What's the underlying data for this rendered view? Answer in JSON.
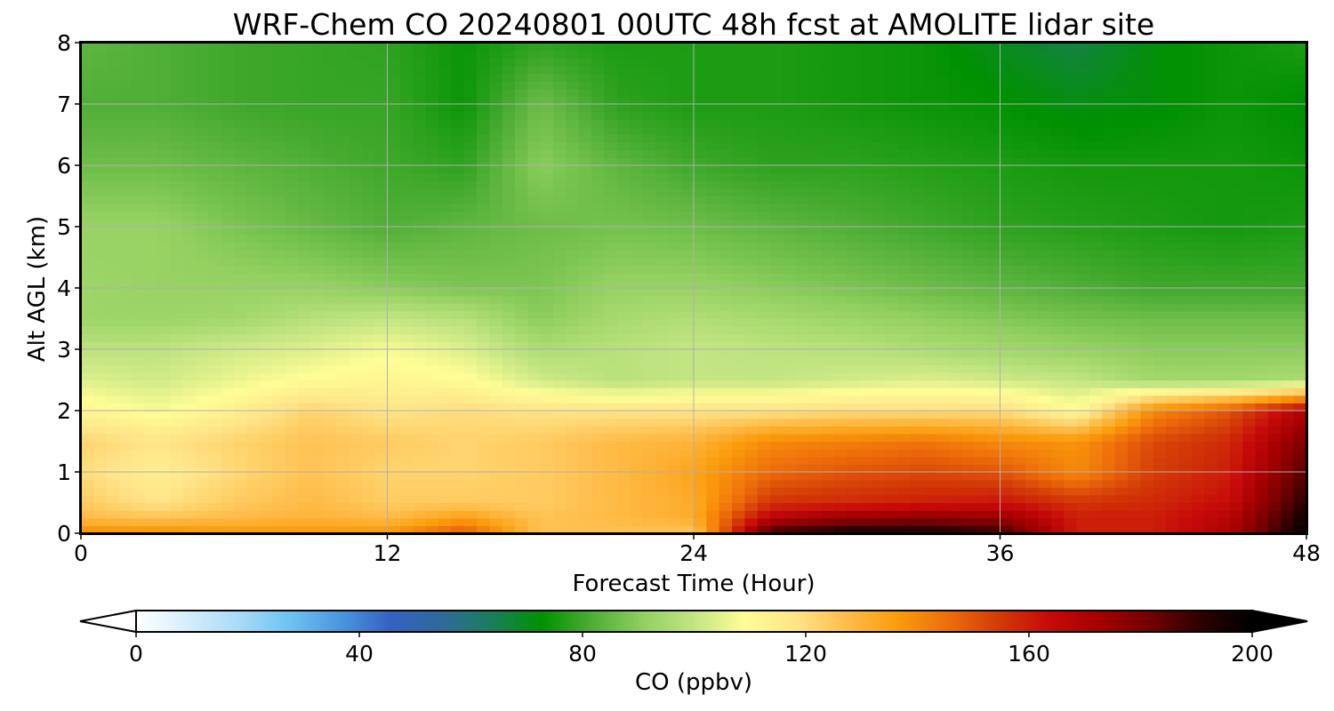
{
  "chart_data": {
    "type": "heatmap",
    "title": "WRF-Chem CO  20240801 00UTC 48h fcst at AMOLITE lidar site",
    "xlabel": "Forecast Time (Hour)",
    "ylabel": "Alt AGL (km)",
    "xlim": [
      0,
      48
    ],
    "ylim": [
      0,
      8
    ],
    "x_ticks": [
      0,
      12,
      24,
      36,
      48
    ],
    "y_ticks": [
      0,
      1,
      2,
      3,
      4,
      5,
      6,
      7,
      8
    ],
    "grid": true,
    "x": [
      0,
      3,
      6,
      9,
      12,
      15,
      18,
      21,
      24,
      27,
      30,
      33,
      36,
      39,
      42,
      45,
      48
    ],
    "y": [
      0,
      0.25,
      0.5,
      1,
      1.5,
      2,
      2.5,
      3,
      3.5,
      4,
      5,
      6,
      7,
      8
    ],
    "z": [
      [
        140,
        140,
        138,
        138,
        138,
        150,
        126,
        126,
        124,
        190,
        196,
        196,
        190,
        160,
        160,
        170,
        200
      ],
      [
        128,
        126,
        128,
        130,
        128,
        136,
        126,
        128,
        132,
        168,
        176,
        178,
        176,
        160,
        160,
        168,
        196
      ],
      [
        124,
        118,
        124,
        128,
        124,
        124,
        124,
        128,
        132,
        156,
        158,
        160,
        162,
        156,
        158,
        164,
        192
      ],
      [
        120,
        114,
        121,
        126,
        122,
        122,
        124,
        128,
        134,
        146,
        150,
        152,
        150,
        140,
        154,
        160,
        186
      ],
      [
        122,
        118,
        122,
        126,
        124,
        122,
        124,
        128,
        130,
        140,
        142,
        144,
        140,
        138,
        152,
        158,
        180
      ],
      [
        112,
        108,
        114,
        122,
        118,
        120,
        118,
        118,
        118,
        118,
        120,
        120,
        120,
        110,
        140,
        150,
        170
      ],
      [
        104,
        102,
        106,
        110,
        112,
        110,
        102,
        98,
        100,
        100,
        102,
        104,
        102,
        100,
        94,
        94,
        96
      ],
      [
        99,
        99,
        102,
        104,
        108,
        104,
        96,
        98,
        100,
        99,
        98,
        96,
        94,
        92,
        90,
        90,
        90
      ],
      [
        93,
        93,
        94,
        98,
        100,
        98,
        90,
        95,
        97,
        95,
        93,
        91,
        89,
        87,
        86,
        86,
        86
      ],
      [
        93,
        92,
        92,
        92,
        90,
        88,
        88,
        92,
        92,
        90,
        88,
        86,
        84,
        82,
        80,
        80,
        80
      ],
      [
        92,
        92,
        88,
        85,
        82,
        84,
        86,
        87,
        86,
        84,
        82,
        80,
        78,
        77,
        76,
        75,
        76
      ],
      [
        86,
        86,
        84,
        82,
        80,
        78,
        90,
        84,
        80,
        78,
        78,
        77,
        76,
        75,
        75,
        75,
        74
      ],
      [
        82,
        82,
        80,
        79,
        79,
        74,
        86,
        78,
        76,
        76,
        75,
        74,
        73,
        71,
        72,
        74,
        72
      ],
      [
        84,
        82,
        80,
        79,
        78,
        74,
        78,
        76,
        76,
        76,
        75,
        74,
        70,
        66,
        72,
        74,
        76
      ]
    ],
    "colorbar": {
      "label": "CO  (ppbv)",
      "ticks": [
        0,
        40,
        80,
        120,
        160,
        200
      ],
      "range": [
        0,
        200
      ],
      "extend": "both",
      "colors": [
        "#ffffff",
        "#d6eefc",
        "#a9dcf7",
        "#6fc4f2",
        "#4b98df",
        "#3562c2",
        "#2e6a9c",
        "#1b7d5c",
        "#009100",
        "#4fae36",
        "#92d060",
        "#c3e583",
        "#fffd96",
        "#ffe488",
        "#ffbd4a",
        "#fb9c0c",
        "#ee6e0a",
        "#d33b07",
        "#c70a0a",
        "#a40000",
        "#720000",
        "#2c0000",
        "#000000"
      ]
    }
  }
}
